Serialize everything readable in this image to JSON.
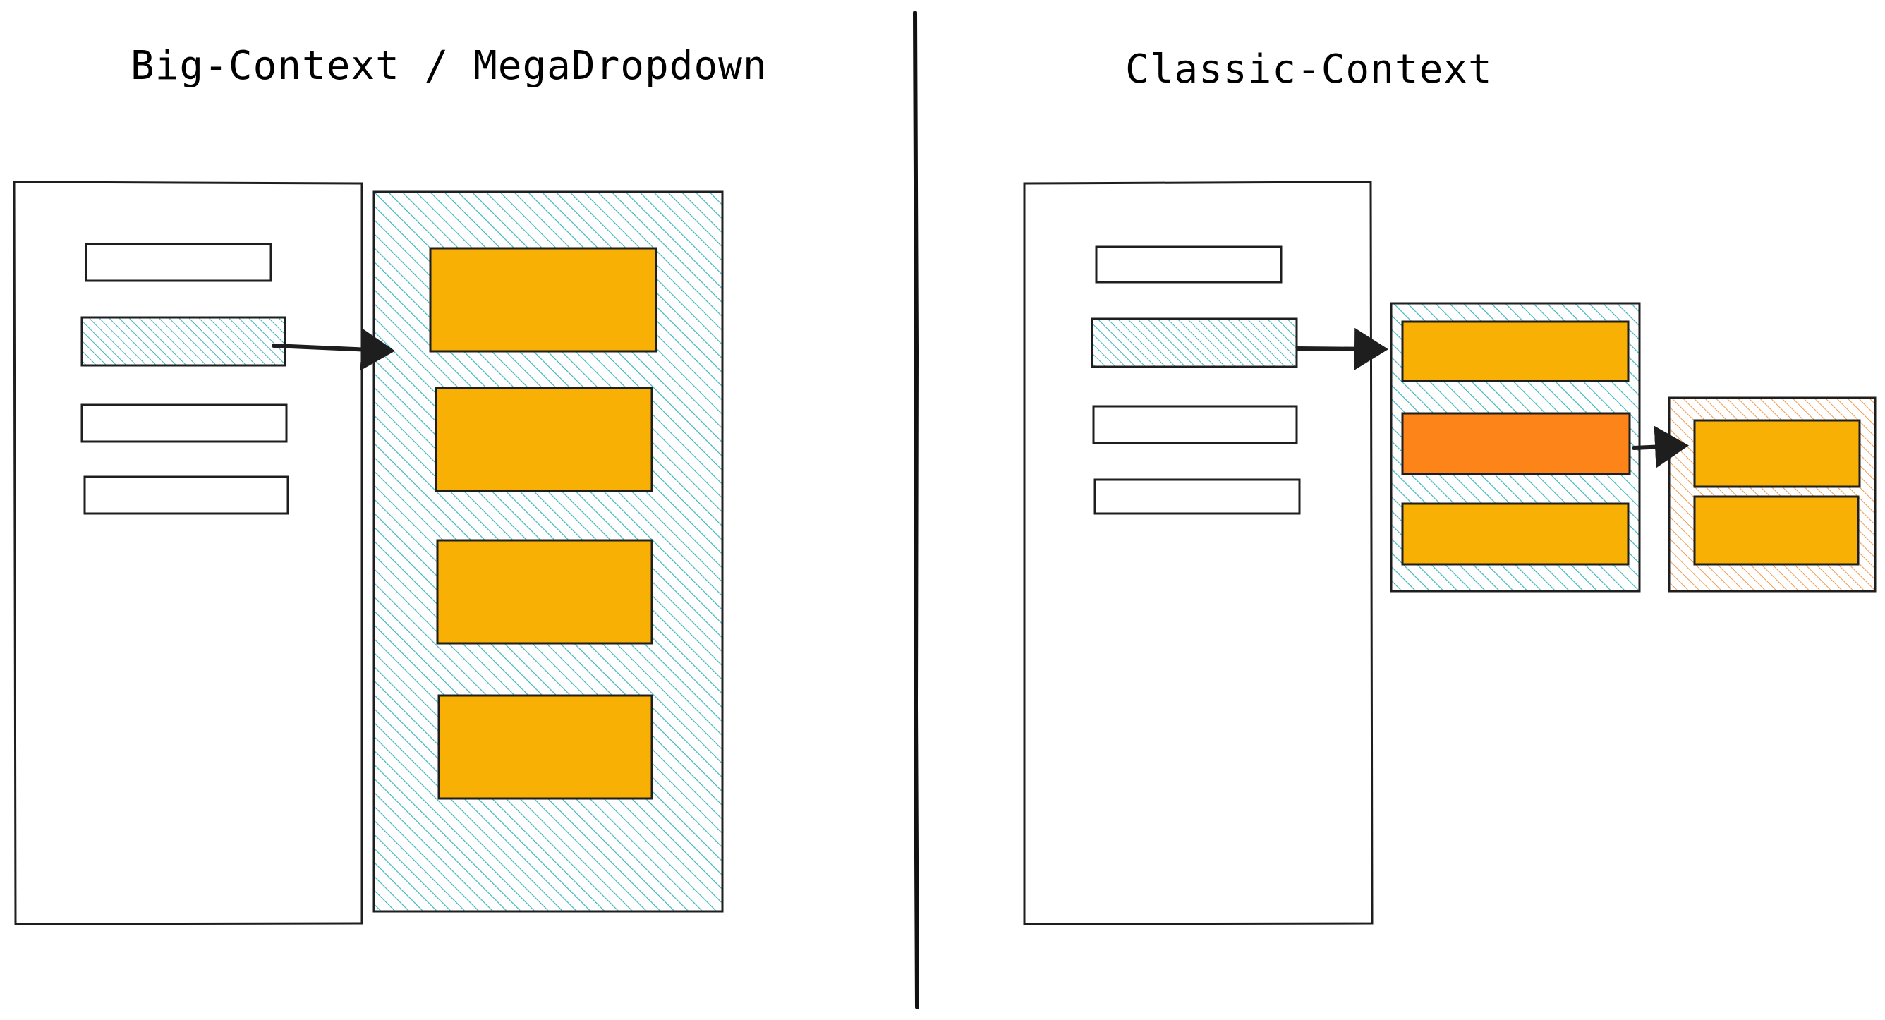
{
  "titles": {
    "left": "Big-Context / MegaDropdown",
    "right": "Classic-Context"
  },
  "colors": {
    "stroke": "#1e1e1e",
    "teal_hatch": "#3fb5c0",
    "item_yellow": "#f9b005",
    "item_orange": "#fd8419",
    "orange_hatch": "#f29a4e",
    "background": "#ffffff"
  },
  "diagrams": {
    "big_context": {
      "menu_items": 4,
      "highlighted_item": 2,
      "mega_panel_items": 4
    },
    "classic_context": {
      "menu_items": 4,
      "highlighted_item": 2,
      "submenu_items": 3,
      "highlighted_submenu_item": 2,
      "nested_submenu_items": 2
    }
  }
}
